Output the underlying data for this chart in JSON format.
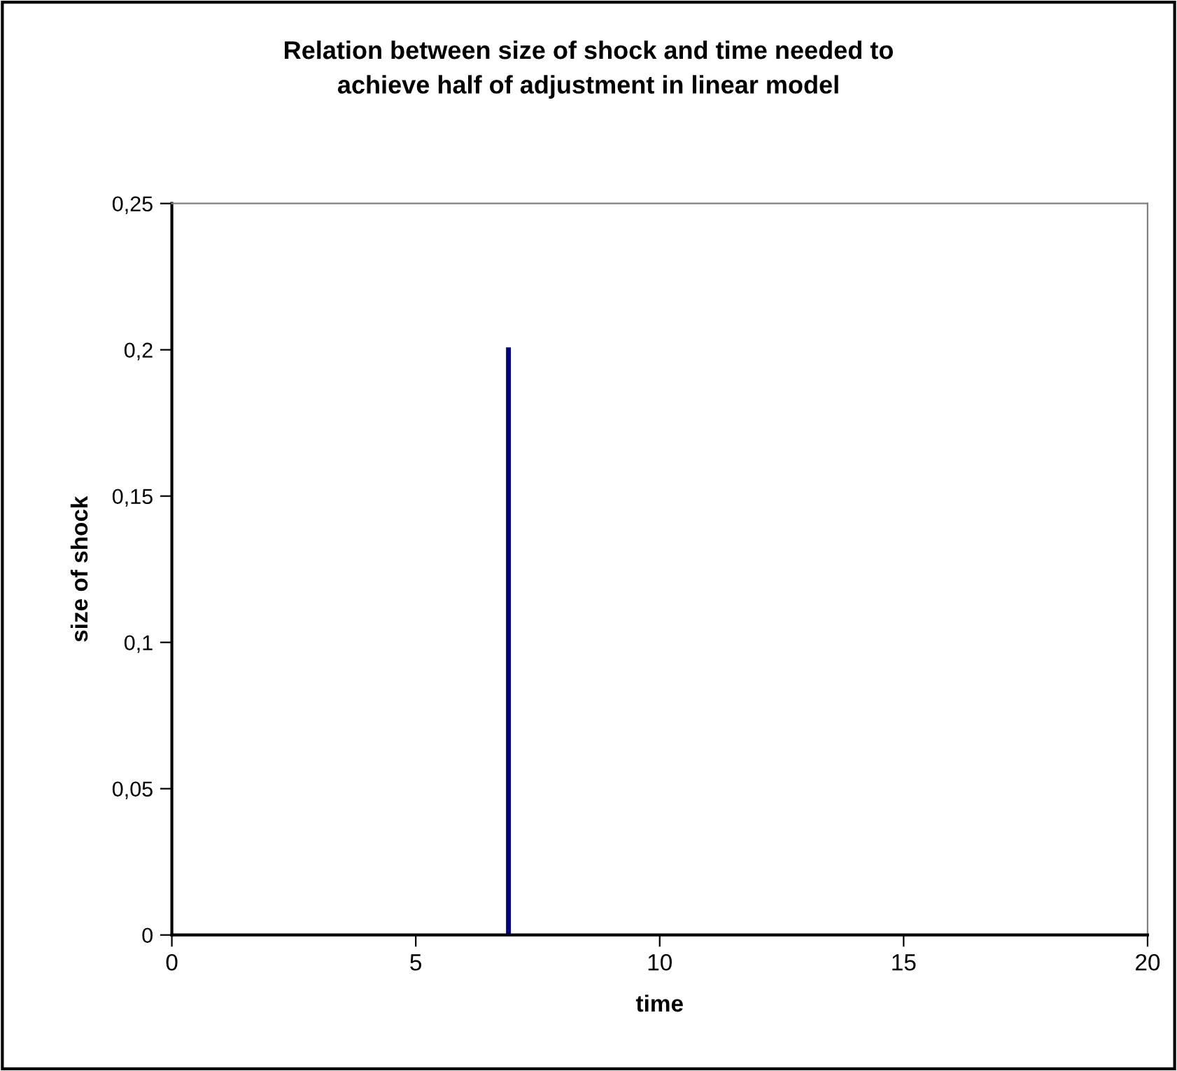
{
  "chart_data": {
    "type": "line",
    "title": "Relation between size of shock and time needed to\nachieve half of adjustment in linear model",
    "xlabel": "time",
    "ylabel": "size of shock",
    "series": [
      {
        "x": [
          6.9,
          6.9
        ],
        "values": [
          0,
          0.2
        ],
        "color": "#000080"
      }
    ],
    "xlim": [
      0,
      20
    ],
    "xticks": [
      0,
      5,
      10,
      15,
      20
    ],
    "ylim": [
      0,
      0.25
    ],
    "yticks": [
      {
        "value": 0,
        "label": "0"
      },
      {
        "value": 0.05,
        "label": "0,05"
      },
      {
        "value": 0.1,
        "label": "0,1"
      },
      {
        "value": 0.15,
        "label": "0,15"
      },
      {
        "value": 0.2,
        "label": "0,2"
      },
      {
        "value": 0.25,
        "label": "0,25"
      }
    ],
    "grid": false,
    "legend": false,
    "marker": "none",
    "line_style": "solid"
  }
}
